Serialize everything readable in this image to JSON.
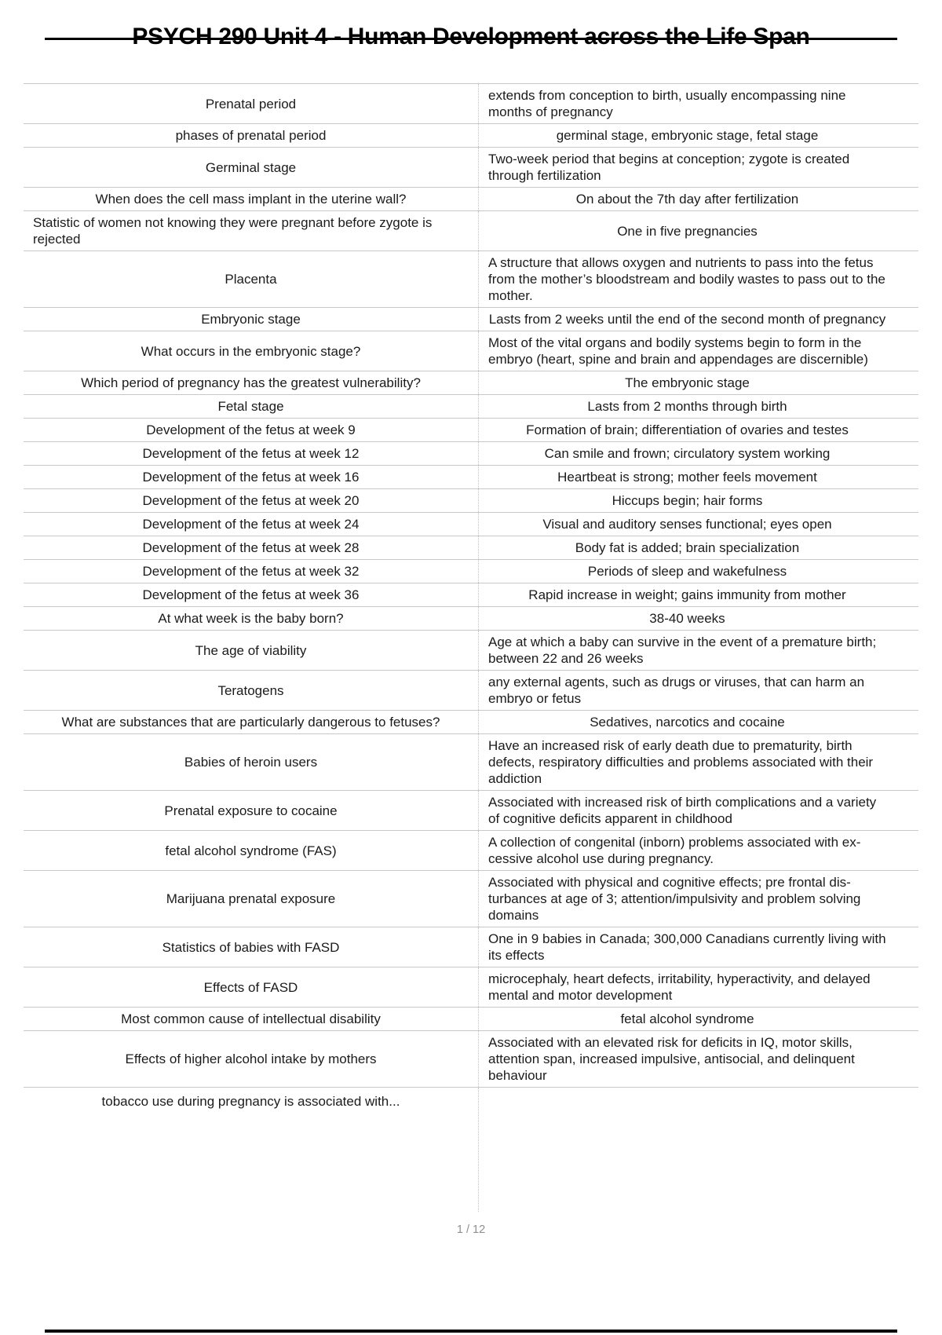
{
  "page": {
    "title": "PSYCH 290 Unit 4 - Human Development across the Life Span",
    "page_indicator": "1 / 12"
  },
  "colors": {
    "row_border": "#c8c8c8",
    "column_divider": "#c2c2c2",
    "text": "#1b1b1b",
    "title": "#000000",
    "page_indicator": "#8f8f8f",
    "rule": "#0a0a0a"
  },
  "table": {
    "rows": [
      {
        "q": "Prenatal period",
        "a": "extends from conception to birth, usually encompassing nine months of pregnancy"
      },
      {
        "q": "phases of prenatal period",
        "a": "germinal stage, embryonic stage, fetal stage"
      },
      {
        "q": "Germinal stage",
        "a": "Two-week period that begins at conception; zygote is created through fertilization"
      },
      {
        "q": "When does the cell mass implant in the uterine wall?",
        "a": "On about the 7th day after fertilization"
      },
      {
        "q": "Statistic of women not knowing they were pregnant before zygote is rejected",
        "a": "One in five pregnancies"
      },
      {
        "q": "Placenta",
        "a": "A structure that allows oxygen and nutrients to pass into the fetus from the mother’s bloodstream and bodily wastes to pass out to the mother."
      },
      {
        "q": "Embryonic stage",
        "a": "Lasts from 2 weeks until the end of the second month of pregnancy"
      },
      {
        "q": "What occurs in the embryonic stage?",
        "a": "Most of the vital organs and bodily systems begin to form in the embryo (heart, spine and brain and appendages are discernible)"
      },
      {
        "q": "Which period of pregnancy has the greatest vulnerability?",
        "a": "The embryonic stage"
      },
      {
        "q": "Fetal stage",
        "a": "Lasts from 2 months through birth"
      },
      {
        "q": "Development of the fetus at week 9",
        "a": "Formation of brain; differentiation of ovaries and testes"
      },
      {
        "q": "Development of the fetus at week 12",
        "a": "Can smile and frown; circulatory system working"
      },
      {
        "q": "Development of the fetus at week 16",
        "a": "Heartbeat is strong; mother feels movement"
      },
      {
        "q": "Development of the fetus at week 20",
        "a": "Hiccups begin; hair forms"
      },
      {
        "q": "Development of the fetus at week 24",
        "a": "Visual and auditory senses functional; eyes open"
      },
      {
        "q": "Development of the fetus at week 28",
        "a": "Body fat is added; brain specialization"
      },
      {
        "q": "Development of the fetus at week 32",
        "a": "Periods of sleep and wakefulness"
      },
      {
        "q": "Development of the fetus at week 36",
        "a": "Rapid increase in weight; gains immunity from mother"
      },
      {
        "q": "At what week is the baby born?",
        "a": "38-40 weeks"
      },
      {
        "q": "The age of viability",
        "a": "Age at which a baby can survive in the event of a premature birth; between 22 and 26 weeks"
      },
      {
        "q": "Teratogens",
        "a": "any external agents, such as drugs or viruses, that can harm an embryo or fetus"
      },
      {
        "q": "What are substances that are particularly dangerous to fetuses?",
        "a": "Sedatives, narcotics and cocaine"
      },
      {
        "q": "Babies of heroin users",
        "a": "Have an increased risk of early death due to prematurity, birth defects, respiratory difficulties and problems associated with their addiction"
      },
      {
        "q": "Prenatal exposure to cocaine",
        "a": "Associated with increased risk of birth complications and a variety of cognitive deficits apparent in childhood"
      },
      {
        "q": "fetal alcohol syndrome (FAS)",
        "a": "A collection of congenital (inborn) problems associated with ex­cessive alcohol use during pregnancy."
      },
      {
        "q": "Marijuana prenatal exposure",
        "a": "Associated with physical and cognitive effects; pre frontal dis­turbances at age of 3; attention/impulsivity and problem solving domains"
      },
      {
        "q": "Statistics of babies with FASD",
        "a": "One in 9 babies in Canada; 300,000 Canadians currently living with its effects"
      },
      {
        "q": "Effects of FASD",
        "a": "microcephaly, heart defects, irritability, hyperactivity, and delayed mental and motor development"
      },
      {
        "q": "Most common cause of intellectual disability",
        "a": "fetal alcohol syndrome"
      },
      {
        "q": "Effects of higher alcohol intake by mothers",
        "a": "Associated with an elevated risk for deficits in IQ, motor skills, attention span, increased impulsive, antisocial, and delinquent behaviour"
      },
      {
        "q": "tobacco use during pregnancy is associated with...",
        "a": ""
      }
    ]
  }
}
